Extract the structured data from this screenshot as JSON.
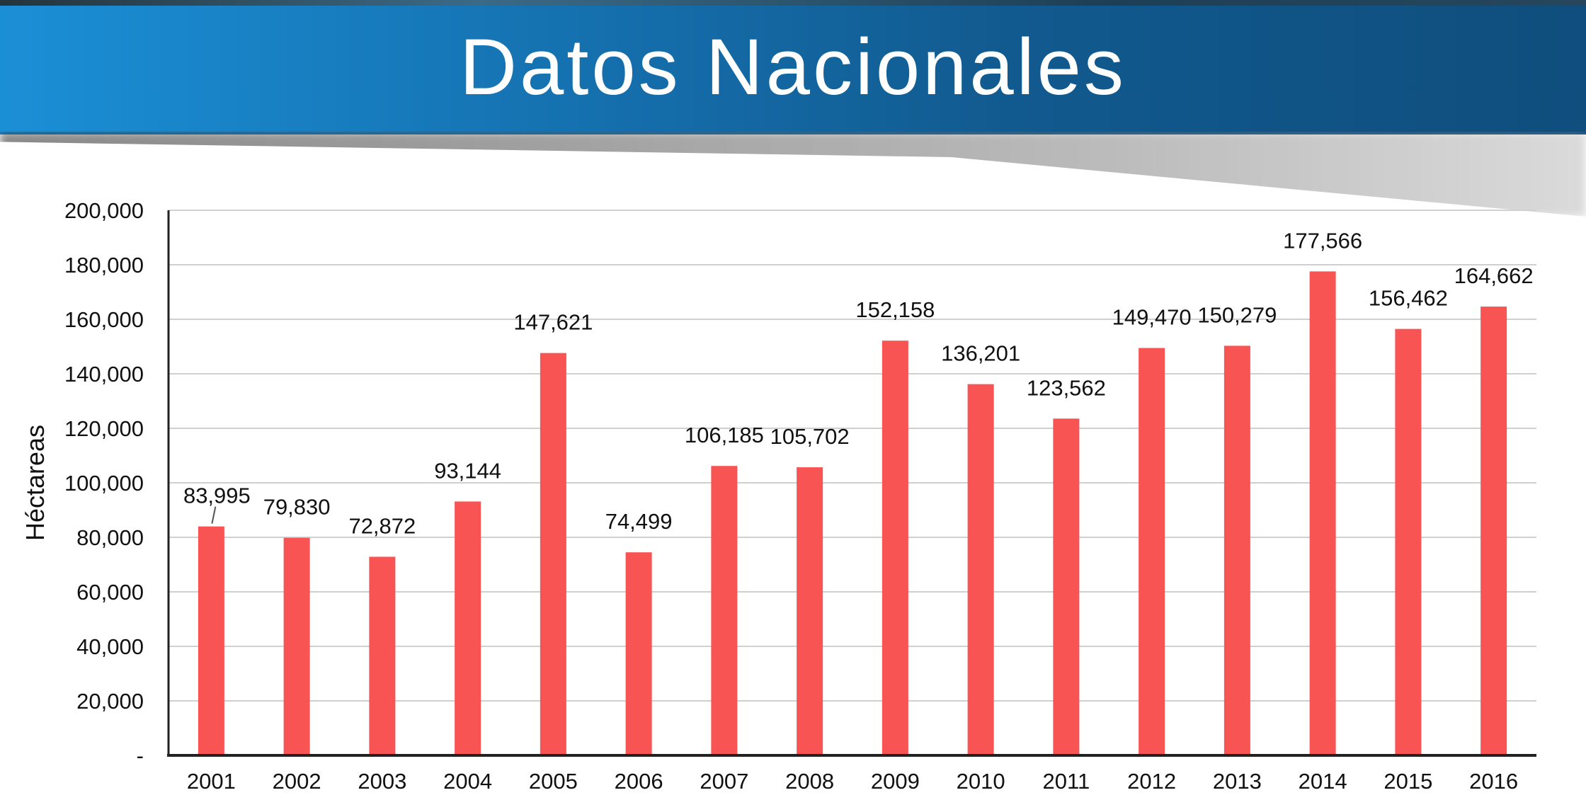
{
  "header": {
    "title": "Datos Nacionales"
  },
  "chart_data": {
    "type": "bar",
    "title": "Datos Nacionales",
    "ylabel": "Héctareas",
    "xlabel": "",
    "categories": [
      "2001",
      "2002",
      "2003",
      "2004",
      "2005",
      "2006",
      "2007",
      "2008",
      "2009",
      "2010",
      "2011",
      "2012",
      "2013",
      "2014",
      "2015",
      "2016"
    ],
    "values": [
      83995,
      79830,
      72872,
      93144,
      147621,
      74499,
      106185,
      105702,
      152158,
      136201,
      123562,
      149470,
      150279,
      177566,
      156462,
      164662
    ],
    "data_labels": [
      "83,995",
      "79,830",
      "72,872",
      "93,144",
      "147,621",
      "74,499",
      "106,185",
      "105,702",
      "152,158",
      "136,201",
      "123,562",
      "149,470",
      "150,279",
      "177,566",
      "156,462",
      "164,662"
    ],
    "yticks": [
      0,
      20000,
      40000,
      60000,
      80000,
      100000,
      120000,
      140000,
      160000,
      180000,
      200000
    ],
    "ytick_labels": [
      "-",
      "20,000",
      "40,000",
      "60,000",
      "80,000",
      "100,000",
      "120,000",
      "140,000",
      "160,000",
      "180,000",
      "200,000"
    ],
    "ylim": [
      0,
      200000
    ],
    "grid": true,
    "legend": "none",
    "bar_color": "#f85454"
  }
}
